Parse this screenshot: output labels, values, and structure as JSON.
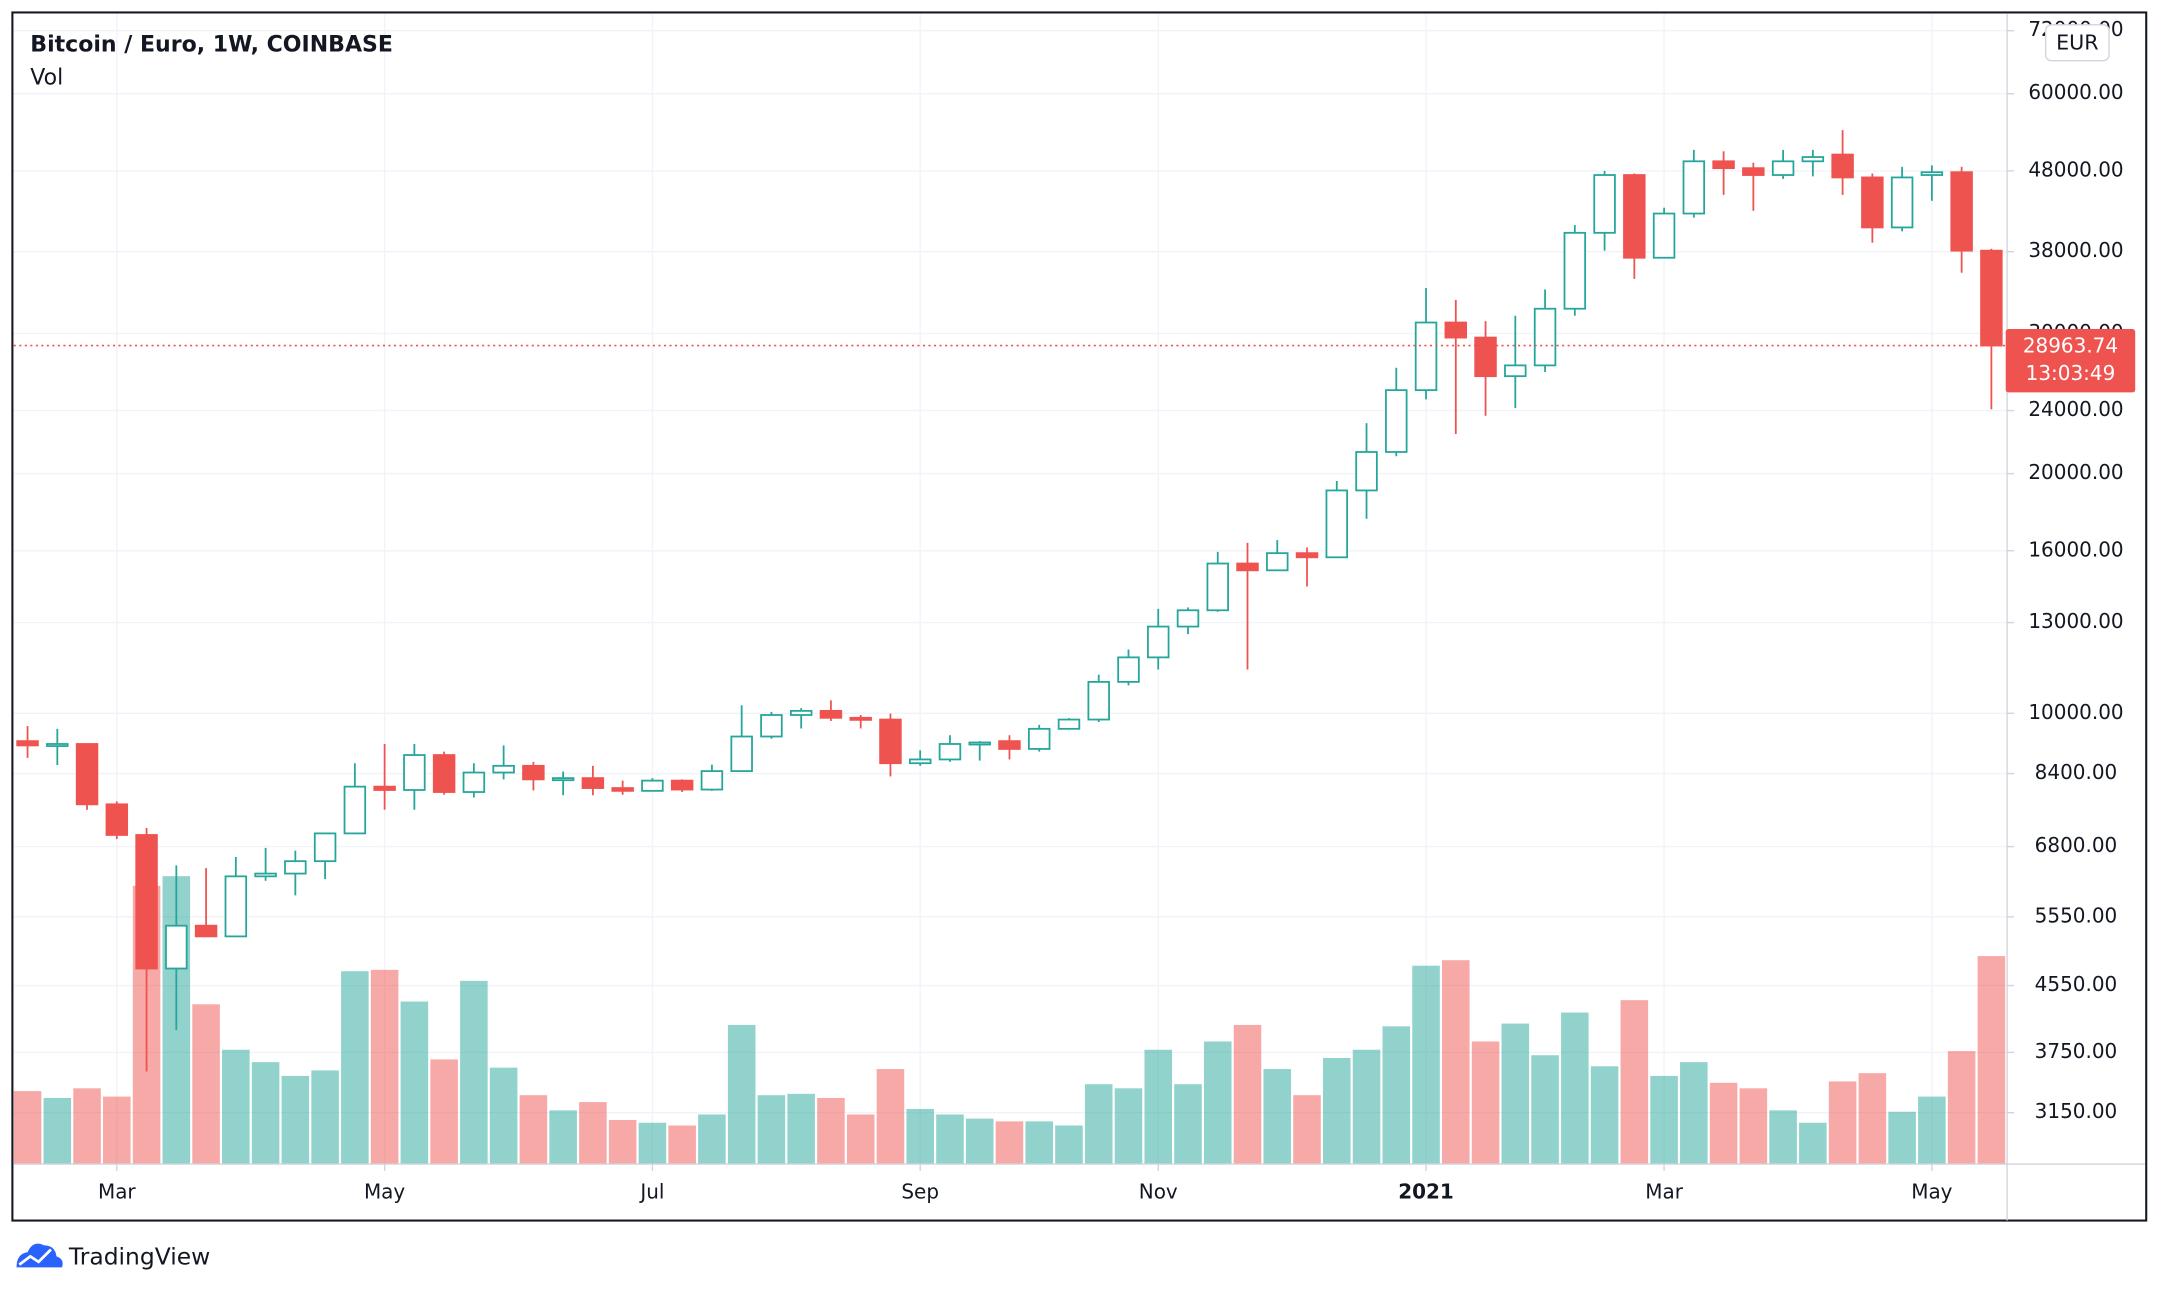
{
  "chart_data": {
    "type": "candlestick",
    "title": "Bitcoin / Euro, 1W, COINBASE",
    "volume_title": "Vol",
    "currency": "EUR",
    "categories": [
      null,
      null,
      null,
      "Mar",
      null,
      null,
      null,
      null,
      null,
      null,
      null,
      null,
      "May",
      null,
      null,
      null,
      null,
      null,
      null,
      null,
      null,
      "Jul",
      null,
      null,
      null,
      null,
      null,
      null,
      null,
      null,
      "Sep",
      null,
      null,
      null,
      null,
      null,
      null,
      null,
      "Nov",
      null,
      null,
      null,
      null,
      null,
      null,
      null,
      null,
      "2021",
      null,
      null,
      null,
      null,
      null,
      null,
      null,
      "Mar",
      null,
      null,
      null,
      null,
      null,
      null,
      null,
      null,
      "May",
      null,
      null
    ],
    "open": [
      9226,
      9112,
      9150,
      7685,
      7033,
      4780,
      5410,
      5245,
      6240,
      6290,
      6520,
      7065,
      8088,
      8010,
      8862,
      7963,
      8425,
      8590,
      8260,
      8290,
      8055,
      7990,
      8230,
      8020,
      8460,
      9350,
      9950,
      10070,
      9870,
      9820,
      8655,
      8750,
      9150,
      9226,
      9020,
      9560,
      9820,
      10950,
      11755,
      12850,
      13470,
      15420,
      15120,
      15890,
      15700,
      19050,
      21290,
      25460,
      30960,
      29640,
      26510,
      27350,
      32220,
      40130,
      47430,
      37340,
      42430,
      49350,
      48380,
      47430,
      49350,
      50320,
      47100,
      40760,
      47430,
      47820,
      38110
    ],
    "high": [
      9636,
      9560,
      9150,
      7750,
      7175,
      6442,
      6390,
      6600,
      6775,
      6720,
      7065,
      8655,
      9150,
      9150,
      8950,
      8655,
      9112,
      8690,
      8450,
      8590,
      8230,
      8290,
      8260,
      8620,
      10235,
      10040,
      10150,
      10380,
      9950,
      9990,
      8985,
      9385,
      9226,
      9385,
      9670,
      9860,
      11180,
      12025,
      13525,
      13580,
      15950,
      16370,
      16500,
      16150,
      19580,
      23140,
      27160,
      34210,
      33050,
      31080,
      31570,
      34070,
      41040,
      48000,
      47640,
      43150,
      51000,
      50800,
      49150,
      51000,
      51000,
      54010,
      47640,
      48560,
      48770,
      48560,
      38320
    ],
    "low": [
      8790,
      8610,
      7565,
      6950,
      3548,
      4000,
      5245,
      5245,
      6160,
      5906,
      6190,
      7065,
      7565,
      7565,
      7900,
      7840,
      8260,
      8000,
      7890,
      7890,
      7900,
      7990,
      7963,
      7990,
      8460,
      9290,
      9570,
      9780,
      9570,
      8330,
      8590,
      8690,
      8720,
      8750,
      8950,
      9670,
      9750,
      10840,
      11350,
      12570,
      13410,
      11350,
      15120,
      14430,
      15700,
      17550,
      21030,
      24790,
      22430,
      23640,
      24180,
      26830,
      31570,
      38110,
      35120,
      37340,
      41930,
      44780,
      42770,
      46900,
      47250,
      44780,
      38990,
      40290,
      44020,
      35750,
      24090
    ],
    "close": [
      9112,
      9150,
      7685,
      7033,
      4780,
      5410,
      5245,
      6240,
      6290,
      6520,
      7065,
      8088,
      8010,
      8862,
      7963,
      8425,
      8590,
      8260,
      8290,
      8055,
      7990,
      8230,
      8020,
      8460,
      9350,
      9950,
      10070,
      9870,
      9820,
      8655,
      8750,
      9150,
      9190,
      9020,
      9560,
      9820,
      10950,
      11755,
      12850,
      13470,
      15420,
      15120,
      15890,
      15700,
      19050,
      21290,
      25460,
      30960,
      29640,
      26510,
      27350,
      32220,
      40130,
      47430,
      37340,
      42430,
      49350,
      48380,
      47430,
      49350,
      49960,
      47100,
      40760,
      47100,
      47820,
      38110,
      28963.74
    ],
    "volume": [
      53,
      48,
      55,
      49,
      202,
      209,
      116,
      83,
      74,
      64,
      68,
      140,
      141,
      118,
      76,
      133,
      70,
      50,
      39,
      45,
      32,
      30,
      28,
      36,
      101,
      50,
      51,
      48,
      36,
      69,
      40,
      36,
      33,
      31,
      31,
      28,
      58,
      55,
      83,
      58,
      89,
      101,
      69,
      50,
      77,
      83,
      100,
      144,
      148,
      89,
      102,
      79,
      110,
      71,
      119,
      64,
      74,
      59,
      55,
      39,
      30,
      60,
      66,
      38,
      49,
      82,
      151
    ],
    "volume_lim": [
      0,
      250
    ],
    "up_color": "#26a69a",
    "down_color": "#ef5350",
    "log_scale": true,
    "grid": true,
    "ylim": [
      2715,
      75600
    ],
    "yticks": [
      {
        "value": 72000,
        "label": "72000.00"
      },
      {
        "value": 60000,
        "label": "60000.00"
      },
      {
        "value": 48000,
        "label": "48000.00"
      },
      {
        "value": 38000,
        "label": "38000.00"
      },
      {
        "value": 30000,
        "label": "30000.00"
      },
      {
        "value": 24000,
        "label": "24000.00"
      },
      {
        "value": 20000,
        "label": "20000.00"
      },
      {
        "value": 16000,
        "label": "16000.00"
      },
      {
        "value": 13000,
        "label": "13000.00"
      },
      {
        "value": 10000,
        "label": "10000.00"
      },
      {
        "value": 8400,
        "label": "8400.00"
      },
      {
        "value": 6800,
        "label": "6800.00"
      },
      {
        "value": 5550,
        "label": "5550.00"
      },
      {
        "value": 4550,
        "label": "4550.00"
      },
      {
        "value": 3750,
        "label": "3750.00"
      },
      {
        "value": 3150,
        "label": "3150.00"
      }
    ],
    "last_price": 28963.74,
    "countdown": "13:03:49"
  },
  "footer": {
    "brand": "TradingView"
  }
}
